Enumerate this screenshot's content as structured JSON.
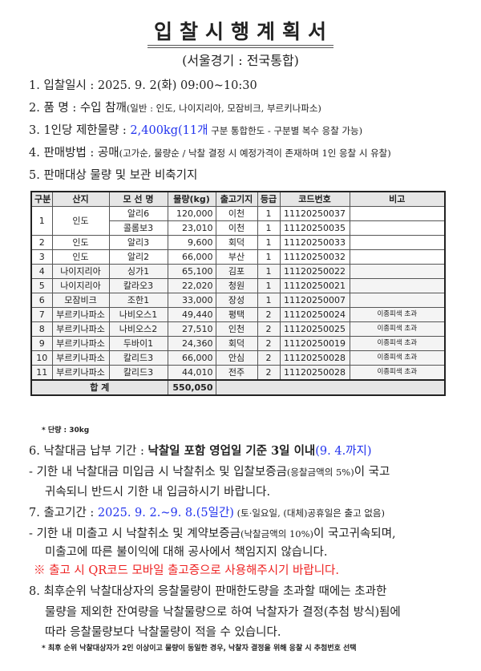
{
  "title": "입찰시행계획서",
  "subtitle": "(서울경기 : 전국통합)",
  "items": {
    "i1": {
      "label": "1. 입찰일시 : ",
      "value": "2025. 9. 2(화) 09:00~10:30"
    },
    "i2": {
      "label": "2. 품      명 : ",
      "value": "수입 참깨",
      "detail": "(일반 : 인도, 나이지리아, 모잠비크, 부르키나파소)"
    },
    "i3": {
      "label": "3.  1인당 제한물량 : ",
      "value": "2,400kg(11개",
      "detail": " 구분 통합한도 - 구분별 복수 응찰 가능)"
    },
    "i4": {
      "label": "4. 판매방법 : ",
      "value": "공매",
      "detail": "(고가순, 물량순 / 낙찰 결정 시 예정가격이 존재하며 1인 응찰 시 유찰)"
    },
    "i5": {
      "label": "5. 판매대상 물량 및 보관 비축기지"
    },
    "i6": {
      "label": "6. 낙찰대금 납부 기간 : ",
      "value": "낙찰일 포함 영업일 기준 3일 이내",
      "date": "(9. 4.까지)",
      "line2a": " - 기한 내 낙찰대금 미입금 시 낙찰취소 및 입찰보증금",
      "line2b": "(응찰금액의 5%)",
      "line2c": "이 국고",
      "line3": "귀속되니 반드시 기한 내 입금하시기 바랍니다."
    },
    "i7": {
      "label": "7. 출고기간 : ",
      "value": "2025. 9. 2.~9. 8.(5일간)",
      "detail": " (토·일요일, (대체)공휴일은 출고 없음)",
      "line2a": " - 기한 내 미출고 시 낙찰취소 및 계약보증금",
      "line2b": "(낙찰금액의 10%)",
      "line2c": "이 국고귀속되며,",
      "line3": "미출고에 따른 불이익에 대해 공사에서 책임지지 않습니다.",
      "warning": "※ 출고 시 QR코드 모바일 출고증으로 사용해주시기 바랍니다."
    },
    "i8": {
      "line1": "8. 최후순위 낙찰대상자의 응찰물량이 판매한도량을 초과할 때에는 초과한",
      "line2": "물량을 제외한 잔여량을 낙찰물량으로 하여 낙찰자가 결정(추첨 방식)됨에",
      "line3": "따라 응찰물량보다 낙찰물량이 적을 수 있습니다.",
      "footnote": "* 최후 순위 낙찰대상자가 2인 이상이고 물량이 동일한 경우, 낙찰자 결정을 위해 응찰 시 추첨번호 선택"
    }
  },
  "table": {
    "headers": [
      "구분",
      "산지",
      "모 선 명",
      "물량(kg)",
      "출고기지",
      "등급",
      "코드번호",
      "비고"
    ],
    "groups": [
      {
        "no": "1",
        "origin": "인도",
        "rows": [
          {
            "vessel": "알리6",
            "qty": "120,000",
            "base": "이천",
            "grade": "1",
            "code": "11120250037",
            "note": ""
          },
          {
            "vessel": "콜롬보3",
            "qty": "23,010",
            "base": "이천",
            "grade": "1",
            "code": "11120250035",
            "note": ""
          }
        ]
      },
      {
        "no": "2",
        "origin": "인도",
        "rows": [
          {
            "vessel": "알리3",
            "qty": "9,600",
            "base": "회덕",
            "grade": "1",
            "code": "11120250033",
            "note": ""
          }
        ]
      },
      {
        "no": "3",
        "origin": "인도",
        "rows": [
          {
            "vessel": "알리2",
            "qty": "66,000",
            "base": "부산",
            "grade": "1",
            "code": "11120250032",
            "note": ""
          }
        ]
      },
      {
        "no": "4",
        "origin": "나이지리아",
        "rows": [
          {
            "vessel": "싱가1",
            "qty": "65,100",
            "base": "김포",
            "grade": "1",
            "code": "11120250022",
            "note": ""
          }
        ]
      },
      {
        "no": "5",
        "origin": "나이지리아",
        "rows": [
          {
            "vessel": "칼라오3",
            "qty": "22,020",
            "base": "청원",
            "grade": "1",
            "code": "11120250021",
            "note": ""
          }
        ]
      },
      {
        "no": "6",
        "origin": "모잠비크",
        "rows": [
          {
            "vessel": "조한1",
            "qty": "33,000",
            "base": "장성",
            "grade": "1",
            "code": "11120250007",
            "note": ""
          }
        ]
      },
      {
        "no": "7",
        "origin": "부르키나파소",
        "rows": [
          {
            "vessel": "나비오스1",
            "qty": "49,440",
            "base": "평택",
            "grade": "2",
            "code": "11120250024",
            "note": "이종피색 초과"
          }
        ]
      },
      {
        "no": "8",
        "origin": "부르키나파소",
        "rows": [
          {
            "vessel": "나비오스2",
            "qty": "27,510",
            "base": "인천",
            "grade": "2",
            "code": "11120250025",
            "note": "이종피색 초과"
          }
        ]
      },
      {
        "no": "9",
        "origin": "부르키나파소",
        "rows": [
          {
            "vessel": "두바이1",
            "qty": "24,360",
            "base": "회덕",
            "grade": "2",
            "code": "11120250019",
            "note": "이종피색 초과"
          }
        ]
      },
      {
        "no": "10",
        "origin": "부르키나파소",
        "rows": [
          {
            "vessel": "칼리드3",
            "qty": "66,000",
            "base": "안심",
            "grade": "2",
            "code": "11120250028",
            "note": "이종피색 초과"
          }
        ]
      },
      {
        "no": "11",
        "origin": "부르키나파소",
        "rows": [
          {
            "vessel": "칼리드3",
            "qty": "44,010",
            "base": "전주",
            "grade": "2",
            "code": "11120250028",
            "note": "이종피색 초과"
          }
        ]
      }
    ],
    "total_label": "합 계",
    "total_qty": "550,050"
  },
  "unit_note": "* 단량 : 30kg",
  "colors": {
    "blue": "#2233ee",
    "red": "#ee2222"
  }
}
